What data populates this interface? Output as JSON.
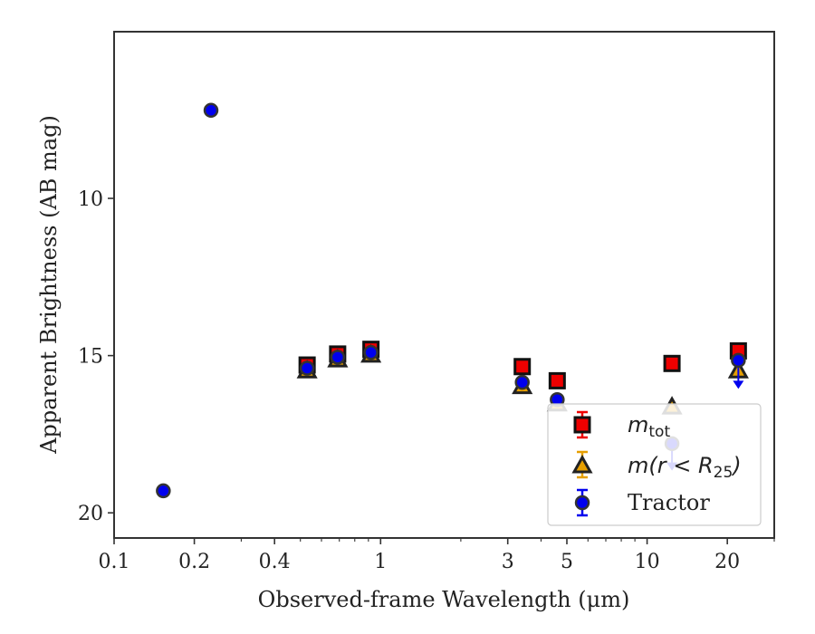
{
  "chart_data": {
    "type": "scatter",
    "xlabel": "Observed-frame Wavelength (μm)",
    "ylabel": "Apparent Brightness (AB mag)",
    "xscale": "log",
    "xlim": [
      0.1,
      30
    ],
    "ylim": [
      20.8,
      4.7
    ],
    "y_inverted": true,
    "xticks": [
      {
        "value": 0.1,
        "label": "0.1"
      },
      {
        "value": 0.2,
        "label": "0.2"
      },
      {
        "value": 0.4,
        "label": "0.4"
      },
      {
        "value": 1,
        "label": "1"
      },
      {
        "value": 3,
        "label": "3"
      },
      {
        "value": 5,
        "label": "5"
      },
      {
        "value": 10,
        "label": "10"
      },
      {
        "value": 20,
        "label": "20"
      }
    ],
    "yticks": [
      {
        "value": 10,
        "label": "10"
      },
      {
        "value": 15,
        "label": "15"
      },
      {
        "value": 20,
        "label": "20"
      }
    ],
    "grid": false,
    "legend_position": "lower-right",
    "series": [
      {
        "key": "mtot",
        "legend_main": "m",
        "legend_sub": "tot",
        "marker": "square",
        "color": "#ee0000",
        "edge": "#111111",
        "points": [
          {
            "x": 0.53,
            "y": 15.3
          },
          {
            "x": 0.69,
            "y": 14.95
          },
          {
            "x": 0.92,
            "y": 14.8
          },
          {
            "x": 3.4,
            "y": 15.35
          },
          {
            "x": 4.6,
            "y": 15.8
          },
          {
            "x": 12.4,
            "y": 15.25
          },
          {
            "x": 22.0,
            "y": 14.85
          }
        ]
      },
      {
        "key": "mr25",
        "legend_text": "m(r < R",
        "legend_sub": "25",
        "legend_close": ")",
        "marker": "triangle",
        "color": "#e69f00",
        "edge": "#222222",
        "points": [
          {
            "x": 0.53,
            "y": 15.45
          },
          {
            "x": 0.69,
            "y": 15.1
          },
          {
            "x": 0.92,
            "y": 14.95
          },
          {
            "x": 3.4,
            "y": 15.95
          },
          {
            "x": 4.6,
            "y": 16.5
          },
          {
            "x": 12.4,
            "y": 16.6
          },
          {
            "x": 22.0,
            "y": 15.45
          }
        ]
      },
      {
        "key": "tractor",
        "legend_text": "Tractor",
        "marker": "circle",
        "color": "#0000ee",
        "edge": "#333333",
        "points": [
          {
            "x": 0.153,
            "y": 19.3
          },
          {
            "x": 0.231,
            "y": 7.2
          },
          {
            "x": 0.53,
            "y": 15.4
          },
          {
            "x": 0.69,
            "y": 15.05
          },
          {
            "x": 0.92,
            "y": 14.9
          },
          {
            "x": 3.4,
            "y": 15.85
          },
          {
            "x": 4.6,
            "y": 16.4
          },
          {
            "x": 12.4,
            "y": 17.8
          },
          {
            "x": 22.0,
            "y": 15.15
          }
        ],
        "upper_limits": [
          {
            "x": 12.4,
            "y": 17.8,
            "to": 18.6
          },
          {
            "x": 22.0,
            "y": 15.15,
            "to": 16.0
          }
        ]
      }
    ]
  }
}
